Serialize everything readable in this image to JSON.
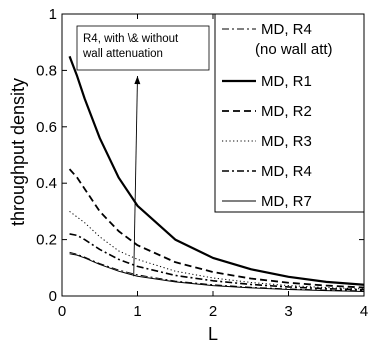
{
  "chart_data": {
    "type": "line",
    "xlabel": "L",
    "ylabel": "throughput density",
    "xlim": [
      0,
      4
    ],
    "ylim": [
      0,
      1
    ],
    "xticks": [
      "0",
      "1",
      "2",
      "3",
      "4"
    ],
    "yticks": [
      "0",
      "0.2",
      "0.4",
      "0.6",
      "0.8",
      "1"
    ],
    "grid": false,
    "legend_position": "top-right",
    "annotation": {
      "text_lines": [
        "R4, with \\& without",
        "wall attenuation"
      ],
      "arrow_from": [
        0.95,
        0.07
      ],
      "arrow_to": [
        1.0,
        0.78
      ]
    },
    "series": [
      {
        "name": "MD, R4\n(no wall att)",
        "style": "dashdot-thin",
        "x": [
          0.1,
          0.2,
          0.3,
          0.5,
          0.75,
          1.0,
          1.5,
          2.0,
          2.5,
          3.0,
          3.5,
          4.0
        ],
        "y": [
          0.155,
          0.148,
          0.138,
          0.115,
          0.092,
          0.075,
          0.053,
          0.04,
          0.031,
          0.025,
          0.021,
          0.018
        ]
      },
      {
        "name": "MD, R1",
        "style": "solid-thick",
        "x": [
          0.1,
          0.2,
          0.3,
          0.5,
          0.75,
          1.0,
          1.5,
          2.0,
          2.5,
          3.0,
          3.5,
          4.0
        ],
        "y": [
          0.85,
          0.78,
          0.7,
          0.56,
          0.42,
          0.32,
          0.2,
          0.135,
          0.095,
          0.068,
          0.05,
          0.04
        ]
      },
      {
        "name": "MD, R2",
        "style": "dashed-thick",
        "x": [
          0.1,
          0.2,
          0.3,
          0.5,
          0.75,
          1.0,
          1.5,
          2.0,
          2.5,
          3.0,
          3.5,
          4.0
        ],
        "y": [
          0.45,
          0.42,
          0.38,
          0.3,
          0.23,
          0.18,
          0.12,
          0.085,
          0.062,
          0.047,
          0.037,
          0.03
        ]
      },
      {
        "name": "MD, R3",
        "style": "dotted",
        "x": [
          0.1,
          0.2,
          0.3,
          0.5,
          0.75,
          1.0,
          1.5,
          2.0,
          2.5,
          3.0,
          3.5,
          4.0
        ],
        "y": [
          0.3,
          0.28,
          0.26,
          0.21,
          0.16,
          0.13,
          0.088,
          0.064,
          0.048,
          0.037,
          0.03,
          0.025
        ]
      },
      {
        "name": "MD, R4",
        "style": "dashdot-thick",
        "x": [
          0.1,
          0.2,
          0.3,
          0.5,
          0.75,
          1.0,
          1.5,
          2.0,
          2.5,
          3.0,
          3.5,
          4.0
        ],
        "y": [
          0.22,
          0.215,
          0.2,
          0.165,
          0.13,
          0.105,
          0.073,
          0.054,
          0.041,
          0.032,
          0.026,
          0.022
        ]
      },
      {
        "name": "MD, R7",
        "style": "solid-thin",
        "x": [
          0.1,
          0.2,
          0.3,
          0.5,
          0.75,
          1.0,
          1.5,
          2.0,
          2.5,
          3.0,
          3.5,
          4.0
        ],
        "y": [
          0.15,
          0.145,
          0.135,
          0.112,
          0.088,
          0.07,
          0.05,
          0.037,
          0.029,
          0.023,
          0.019,
          0.016
        ]
      }
    ]
  }
}
